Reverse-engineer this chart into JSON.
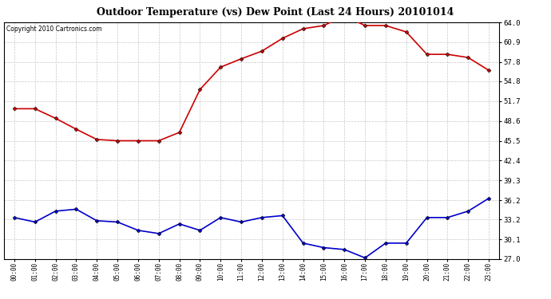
{
  "title": "Outdoor Temperature (vs) Dew Point (Last 24 Hours) 20101014",
  "copyright": "Copyright 2010 Cartronics.com",
  "hours": [
    "00:00",
    "01:00",
    "02:00",
    "03:00",
    "04:00",
    "05:00",
    "06:00",
    "07:00",
    "08:00",
    "09:00",
    "10:00",
    "11:00",
    "12:00",
    "13:00",
    "14:00",
    "15:00",
    "16:00",
    "17:00",
    "18:00",
    "19:00",
    "20:00",
    "21:00",
    "22:00",
    "23:00"
  ],
  "temp": [
    50.5,
    50.5,
    49.0,
    47.3,
    45.7,
    45.5,
    45.5,
    45.5,
    46.8,
    53.5,
    57.0,
    58.3,
    59.5,
    61.5,
    63.0,
    63.5,
    65.0,
    63.5,
    63.5,
    62.5,
    59.0,
    59.0,
    58.5,
    56.5
  ],
  "dew": [
    33.5,
    32.8,
    34.5,
    34.8,
    33.0,
    32.8,
    31.5,
    31.0,
    32.5,
    31.5,
    33.5,
    32.8,
    33.5,
    33.8,
    29.5,
    28.8,
    28.5,
    27.2,
    29.5,
    29.5,
    33.5,
    33.5,
    34.5,
    36.5
  ],
  "temp_color": "#cc0000",
  "dew_color": "#0000cc",
  "bg_color": "#ffffff",
  "grid_color": "#c8c8c8",
  "yticks": [
    27.0,
    30.1,
    33.2,
    36.2,
    39.3,
    42.4,
    45.5,
    48.6,
    51.7,
    54.8,
    57.8,
    60.9,
    64.0
  ],
  "ymin": 27.0,
  "ymax": 64.0,
  "marker": "D",
  "marker_size": 2.5,
  "line_width": 1.2
}
